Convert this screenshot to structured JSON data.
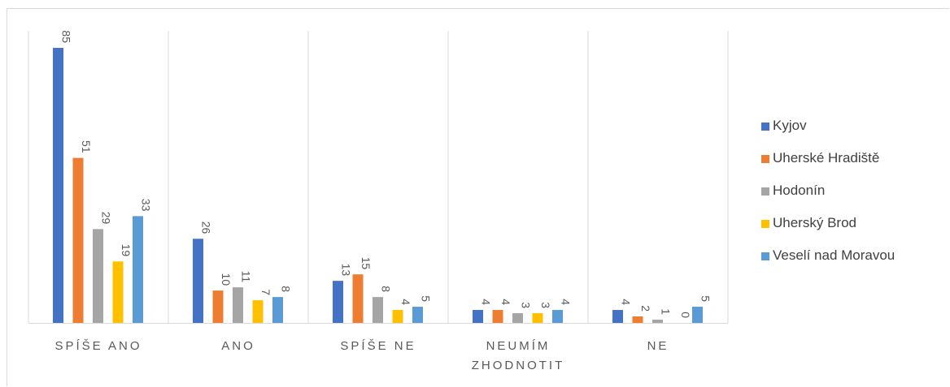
{
  "chart_data": {
    "type": "bar",
    "categories": [
      "SPÍŠE ANO",
      "ANO",
      "SPÍŠE NE",
      "NEUMÍM ZHODNOTIT",
      "NE"
    ],
    "category_lines": [
      [
        "SPÍŠE ANO"
      ],
      [
        "ANO"
      ],
      [
        "SPÍŠE NE"
      ],
      [
        "NEUMÍM",
        "ZHODNOTIT"
      ],
      [
        "NE"
      ]
    ],
    "series": [
      {
        "name": "Kyjov",
        "color": "#4472c4",
        "values": [
          85,
          26,
          13,
          4,
          4
        ]
      },
      {
        "name": "Uherské Hradiště",
        "color": "#ed7d31",
        "values": [
          51,
          10,
          15,
          4,
          2
        ]
      },
      {
        "name": "Hodonín",
        "color": "#a5a5a5",
        "values": [
          29,
          11,
          8,
          3,
          1
        ]
      },
      {
        "name": "Uherský Brod",
        "color": "#ffc000",
        "values": [
          19,
          7,
          4,
          3,
          0
        ]
      },
      {
        "name": "Veselí nad Moravou",
        "color": "#5b9bd5",
        "values": [
          33,
          8,
          5,
          4,
          5
        ]
      }
    ],
    "ylim": [
      0,
      85
    ],
    "grid": "vertical category separators",
    "legend": "right",
    "data_labels": "rotated, above bars"
  }
}
